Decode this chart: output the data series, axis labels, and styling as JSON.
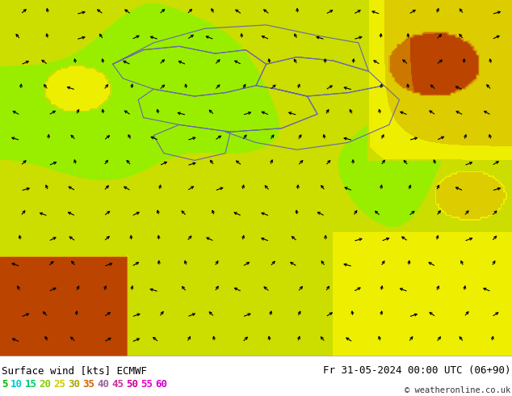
{
  "title_left": "Surface wind [kts] ECMWF",
  "title_right": "Fr 31-05-2024 00:00 UTC (06+90)",
  "credit": "© weatheronline.co.uk",
  "legend_values": [
    5,
    10,
    15,
    20,
    25,
    30,
    35,
    40,
    45,
    50,
    55,
    60
  ],
  "legend_colors": [
    "#00cc00",
    "#00ff00",
    "#66ff00",
    "#ccff00",
    "#ffff00",
    "#ffcc00",
    "#ff9900",
    "#ff6600",
    "#ff3300",
    "#ff0066",
    "#cc00cc",
    "#9900cc"
  ],
  "bg_color": "#ffffff",
  "map_bg": "#f0e040",
  "wind_arrow_color": "#000000",
  "border_color": "#555577",
  "color_levels": [
    5,
    10,
    15,
    20,
    25,
    30,
    35,
    40,
    45,
    50,
    55,
    60
  ],
  "colormap_colors": [
    "#00ee00",
    "#66ff33",
    "#aaff00",
    "#ddee00",
    "#eeee00",
    "#eecc00",
    "#ee9900",
    "#ee6600",
    "#cc3300",
    "#cc0066",
    "#aa00aa",
    "#880099"
  ]
}
